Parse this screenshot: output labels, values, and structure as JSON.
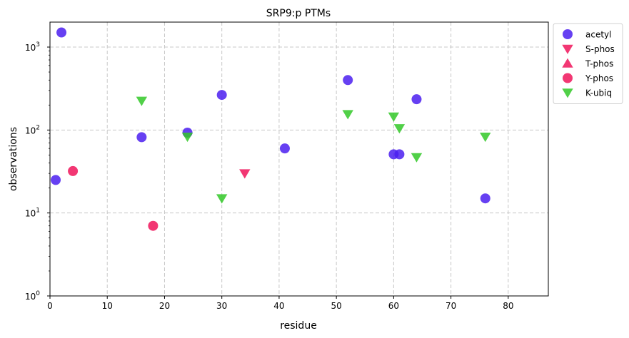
{
  "chart_data": {
    "type": "scatter",
    "title": "SRP9:p PTMs",
    "xlabel": "residue",
    "ylabel": "observations",
    "xlim": [
      0,
      87
    ],
    "ylim": [
      1,
      2000
    ],
    "yscale": "log",
    "grid": true,
    "legend_position": "outside-top-right",
    "x_ticks": [
      0,
      10,
      20,
      30,
      40,
      50,
      60,
      70,
      80
    ],
    "y_ticks": [
      {
        "value": 1,
        "base": "10",
        "exp": "0"
      },
      {
        "value": 10,
        "base": "10",
        "exp": "1"
      },
      {
        "value": 100,
        "base": "10",
        "exp": "2"
      },
      {
        "value": 1000,
        "base": "10",
        "exp": "3"
      }
    ],
    "series": [
      {
        "name": "acetyl",
        "marker": "circle",
        "color": "#4b1ef0",
        "points": [
          [
            1,
            25
          ],
          [
            2,
            1500
          ],
          [
            16,
            82
          ],
          [
            24,
            93
          ],
          [
            30,
            265
          ],
          [
            41,
            60
          ],
          [
            52,
            400
          ],
          [
            60,
            51
          ],
          [
            61,
            51
          ],
          [
            64,
            235
          ],
          [
            76,
            15
          ]
        ]
      },
      {
        "name": "S-phos",
        "marker": "triangle-down",
        "color": "#f0145a",
        "points": [
          [
            34,
            30
          ]
        ]
      },
      {
        "name": "T-phos",
        "marker": "triangle-up",
        "color": "#f0145a",
        "points": []
      },
      {
        "name": "Y-phos",
        "marker": "circle",
        "color": "#f0145a",
        "points": [
          [
            4,
            32
          ],
          [
            18,
            7
          ]
        ]
      },
      {
        "name": "K-ubiq",
        "marker": "triangle-down",
        "color": "#32c828",
        "points": [
          [
            16,
            225
          ],
          [
            24,
            83
          ],
          [
            30,
            15
          ],
          [
            52,
            155
          ],
          [
            60,
            145
          ],
          [
            61,
            105
          ],
          [
            64,
            47
          ],
          [
            76,
            83
          ]
        ]
      }
    ]
  }
}
